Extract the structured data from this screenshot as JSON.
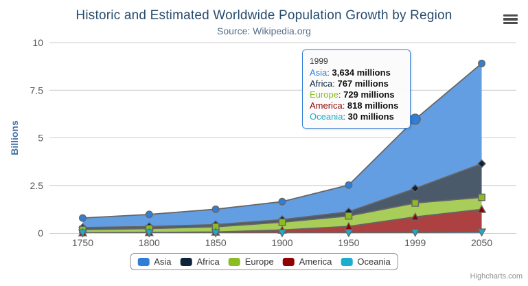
{
  "credits_label": "Highcharts.com",
  "chart_data": {
    "type": "area",
    "stacking": "normal",
    "title": "Historic and Estimated Worldwide Population Growth by Region",
    "subtitle": "Source: Wikipedia.org",
    "categories": [
      "1750",
      "1800",
      "1850",
      "1900",
      "1950",
      "1999",
      "2050"
    ],
    "xlabel": "",
    "ylabel": "Billions",
    "ylim": [
      0,
      10
    ],
    "yticks": [
      0,
      2.5,
      5,
      7.5,
      10
    ],
    "ytick_labels": [
      "0",
      "2.5",
      "5",
      "7.5",
      "10"
    ],
    "unit": "millions",
    "unit_divisor": 1000,
    "grid": true,
    "legend_position": "bottom",
    "line_color": "#666666",
    "fill_opacity": 0.75,
    "axis_line_color": "#C0D0E0",
    "grid_line_color": "#cccccc",
    "series": [
      {
        "name": "Asia",
        "color": "#2f7ed8",
        "marker": "circle",
        "values_millions": [
          502,
          635,
          809,
          947,
          1402,
          3634,
          5268
        ]
      },
      {
        "name": "Africa",
        "color": "#0d233a",
        "marker": "diamond",
        "values_millions": [
          106,
          107,
          111,
          133,
          221,
          767,
          1766
        ]
      },
      {
        "name": "Europe",
        "color": "#8bbc21",
        "marker": "square",
        "values_millions": [
          163,
          203,
          276,
          408,
          547,
          729,
          628
        ]
      },
      {
        "name": "America",
        "color": "#910000",
        "marker": "triangle-up",
        "values_millions": [
          18,
          31,
          54,
          156,
          339,
          818,
          1201
        ]
      },
      {
        "name": "Oceania",
        "color": "#1aadce",
        "marker": "triangle-down",
        "values_millions": [
          2,
          2,
          2,
          6,
          13,
          30,
          46
        ]
      }
    ]
  },
  "hover": {
    "series": "Asia",
    "category": "1999"
  },
  "tooltip": {
    "header": "1999",
    "border_color": "#2f7ed8",
    "rows": [
      {
        "series": "Asia",
        "value": "3,634 millions"
      },
      {
        "series": "Africa",
        "value": "767 millions"
      },
      {
        "series": "Europe",
        "value": "729 millions"
      },
      {
        "series": "America",
        "value": "818 millions"
      },
      {
        "series": "Oceania",
        "value": "30 millions"
      }
    ]
  }
}
